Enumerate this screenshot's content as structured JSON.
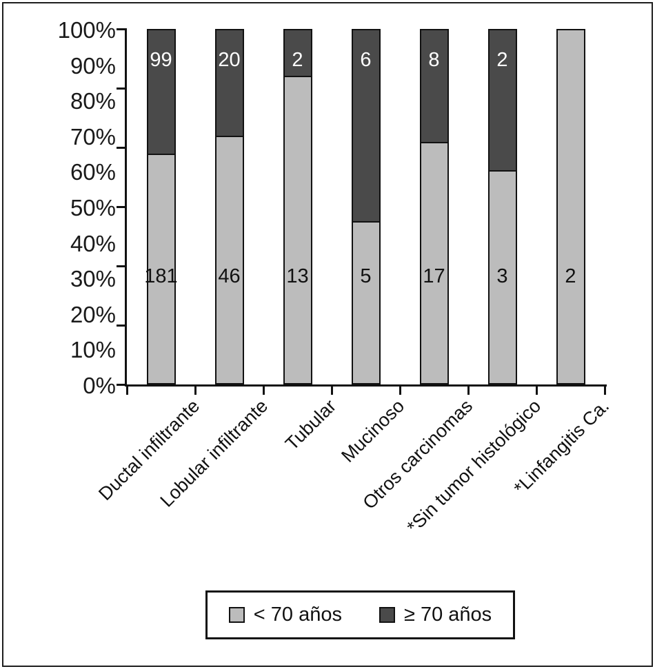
{
  "chart_data": {
    "type": "bar",
    "subtype": "stacked-100-percent-column",
    "title": "",
    "xlabel": "",
    "ylabel": "",
    "categories": [
      "Ductal infiltrante",
      "Lobular infiltrante",
      "Tubular",
      "Mucinoso",
      "Otros carcinomas",
      "*Sin tumor histológico",
      "*Linfangitis Ca."
    ],
    "series": [
      {
        "name": "< 70 años",
        "color": "#bcbcbc",
        "values": [
          181,
          46,
          13,
          5,
          17,
          3,
          2
        ]
      },
      {
        "name": "≥ 70 años",
        "color": "#4a4a4a",
        "values": [
          99,
          20,
          2,
          6,
          8,
          2,
          0
        ]
      }
    ],
    "y_tick_labels": [
      "100%",
      "90%",
      "80%",
      "70%",
      "60%",
      "50%",
      "40%",
      "30%",
      "20%",
      "10%",
      "0%"
    ],
    "ylim": [
      0,
      100
    ],
    "grid": false,
    "legend_position": "bottom",
    "bar_outline_color": "#111111",
    "value_label_color_on_dark": "#ffffff",
    "value_label_color_on_light": "#111111"
  },
  "legend": {
    "items": [
      {
        "label": "< 70 años",
        "color": "#bcbcbc"
      },
      {
        "label": "≥ 70 años",
        "color": "#4a4a4a"
      }
    ]
  }
}
